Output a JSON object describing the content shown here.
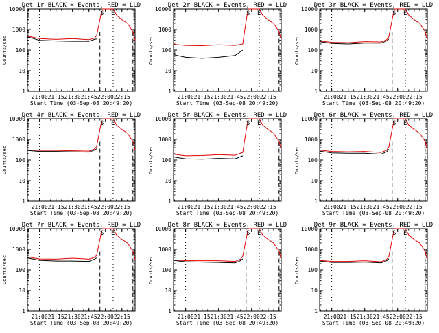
{
  "figure": {
    "start_time_label": "Start Time (03-Sep-08 20:49:20)",
    "ylabel": "Counts/sec"
  },
  "colors": {
    "events": "#000000",
    "lld": "#e00000",
    "background": "#ffffff"
  },
  "markers": {
    "top_letters": [
      "S",
      "E"
    ]
  },
  "chart_data": [
    {
      "type": "line",
      "title": "Det 1r BLACK = Events, RED = LLD",
      "xlabel": "Start Time (03-Sep-08 20:49:20)",
      "ylabel": "Counts/sec",
      "y_scale": "log",
      "ylim": [
        1,
        10000
      ],
      "x_ticks": [
        "21:00",
        "21:15",
        "21:30",
        "21:45",
        "22:00",
        "22:15"
      ],
      "x_range": [
        "20:49",
        "22:27"
      ],
      "y_ticks": [
        "1",
        "10",
        "100",
        "1000",
        "10000"
      ],
      "dotted_lines": [
        "21:00",
        "22:07"
      ],
      "dashed_lines": [
        "21:55",
        "22:25"
      ],
      "series": [
        {
          "x": [
            "20:49",
            "21:00",
            "21:15",
            "21:30",
            "21:45",
            "21:50",
            "21:52",
            "22:00",
            "22:07",
            "22:10",
            "22:15",
            "22:20",
            "22:25",
            "22:27"
          ],
          "values": [
            440,
            300,
            280,
            270,
            270,
            330,
            350,
            null,
            null,
            null,
            null,
            null,
            null,
            null
          ]
        },
        {
          "x": [
            "20:49",
            "21:00",
            "21:15",
            "21:30",
            "21:45",
            "21:50",
            "21:52",
            "21:55",
            "21:57",
            "22:07",
            "22:10",
            "22:15",
            "22:20",
            "22:25",
            "22:27"
          ],
          "values": [
            480,
            360,
            330,
            360,
            320,
            380,
            500,
            3000,
            10000,
            10000,
            5000,
            3000,
            2000,
            800,
            300
          ]
        }
      ]
    },
    {
      "type": "line",
      "title": "Det 2r BLACK = Events, RED = LLD",
      "xlabel": "Start Time (03-Sep-08 20:49:20)",
      "ylabel": "Counts/sec",
      "y_scale": "log",
      "ylim": [
        1,
        10000
      ],
      "x_ticks": [
        "21:00",
        "21:15",
        "21:30",
        "21:45",
        "22:00",
        "22:15"
      ],
      "x_range": [
        "20:49",
        "22:27"
      ],
      "y_ticks": [
        "1",
        "10",
        "100",
        "1000",
        "10000"
      ],
      "dotted_lines": [
        "22:07"
      ],
      "dashed_lines": [
        "22:25"
      ],
      "series": [
        {
          "x": [
            "20:49",
            "21:00",
            "21:15",
            "21:30",
            "21:45",
            "21:52"
          ],
          "values": [
            60,
            45,
            40,
            45,
            55,
            100
          ]
        },
        {
          "x": [
            "20:49",
            "21:00",
            "21:15",
            "21:30",
            "21:45",
            "21:52",
            "21:55",
            "21:57",
            "22:07",
            "22:10",
            "22:15",
            "22:20",
            "22:25",
            "22:27"
          ],
          "values": [
            190,
            170,
            165,
            180,
            170,
            200,
            2500,
            10000,
            10000,
            5000,
            3000,
            2000,
            800,
            300
          ]
        }
      ]
    },
    {
      "type": "line",
      "title": "Det 3r BLACK = Events, RED = LLD",
      "xlabel": "Start Time (03-Sep-08 20:49:20)",
      "ylabel": "Counts/sec",
      "y_scale": "log",
      "ylim": [
        1,
        10000
      ],
      "x_ticks": [
        "21:00",
        "21:15",
        "21:30",
        "21:45",
        "22:00",
        "22:15"
      ],
      "x_range": [
        "20:49",
        "22:27"
      ],
      "y_ticks": [
        "1",
        "10",
        "100",
        "1000",
        "10000"
      ],
      "dotted_lines": [
        "21:00",
        "22:07"
      ],
      "dashed_lines": [
        "21:55",
        "22:25"
      ],
      "series": [
        {
          "x": [
            "20:49",
            "21:00",
            "21:15",
            "21:30",
            "21:45",
            "21:50",
            "21:52"
          ],
          "values": [
            260,
            210,
            200,
            220,
            220,
            280,
            350
          ]
        },
        {
          "x": [
            "20:49",
            "21:00",
            "21:15",
            "21:30",
            "21:45",
            "21:50",
            "21:52",
            "21:55",
            "21:57",
            "22:07",
            "22:10",
            "22:15",
            "22:20",
            "22:25",
            "22:27"
          ],
          "values": [
            280,
            240,
            230,
            260,
            250,
            320,
            450,
            3000,
            10000,
            10000,
            5000,
            3000,
            2000,
            800,
            300
          ]
        }
      ]
    },
    {
      "type": "line",
      "title": "Det 4r BLACK = Events, RED = LLD",
      "xlabel": "Start Time (03-Sep-08 20:49:20)",
      "ylabel": "Counts/sec",
      "y_scale": "log",
      "ylim": [
        1,
        10000
      ],
      "x_ticks": [
        "21:00",
        "21:15",
        "21:30",
        "21:45",
        "22:00",
        "22:15"
      ],
      "x_range": [
        "20:49",
        "22:27"
      ],
      "y_ticks": [
        "1",
        "10",
        "100",
        "1000",
        "10000"
      ],
      "dotted_lines": [
        "21:00",
        "22:07"
      ],
      "dashed_lines": [
        "21:55",
        "22:25"
      ],
      "series": [
        {
          "x": [
            "20:49",
            "21:00",
            "21:15",
            "21:30",
            "21:45",
            "21:50",
            "21:52"
          ],
          "values": [
            290,
            260,
            260,
            250,
            240,
            300,
            350
          ]
        },
        {
          "x": [
            "20:49",
            "21:00",
            "21:15",
            "21:30",
            "21:45",
            "21:50",
            "21:52",
            "21:55",
            "21:57",
            "22:07",
            "22:10",
            "22:15",
            "22:20",
            "22:25",
            "22:27"
          ],
          "values": [
            310,
            290,
            290,
            280,
            270,
            340,
            450,
            3000,
            10000,
            10000,
            5000,
            3000,
            2000,
            800,
            300
          ]
        }
      ]
    },
    {
      "type": "line",
      "title": "Det 5r BLACK = Events, RED = LLD",
      "xlabel": "Start Time (03-Sep-08 20:49:20)",
      "ylabel": "Counts/sec",
      "y_scale": "log",
      "ylim": [
        1,
        10000
      ],
      "x_ticks": [
        "21:00",
        "21:15",
        "21:30",
        "21:45",
        "22:00",
        "22:15"
      ],
      "x_range": [
        "20:49",
        "22:27"
      ],
      "y_ticks": [
        "1",
        "10",
        "100",
        "1000",
        "10000"
      ],
      "dotted_lines": [
        "22:07"
      ],
      "dashed_lines": [
        "22:25"
      ],
      "series": [
        {
          "x": [
            "20:49",
            "21:00",
            "21:15",
            "21:30",
            "21:45",
            "21:52"
          ],
          "values": [
            140,
            115,
            110,
            120,
            115,
            160
          ]
        },
        {
          "x": [
            "20:49",
            "21:00",
            "21:15",
            "21:30",
            "21:45",
            "21:52",
            "21:55",
            "21:57",
            "22:07",
            "22:10",
            "22:15",
            "22:20",
            "22:25",
            "22:27"
          ],
          "values": [
            190,
            160,
            165,
            180,
            170,
            230,
            2500,
            10000,
            10000,
            5000,
            3000,
            2000,
            800,
            300
          ]
        }
      ]
    },
    {
      "type": "line",
      "title": "Det 6r BLACK = Events, RED = LLD",
      "xlabel": "Start Time (03-Sep-08 20:49:20)",
      "ylabel": "Counts/sec",
      "y_scale": "log",
      "ylim": [
        1,
        10000
      ],
      "x_ticks": [
        "21:00",
        "21:15",
        "21:30",
        "21:45",
        "22:00",
        "22:15"
      ],
      "x_range": [
        "20:49",
        "22:27"
      ],
      "y_ticks": [
        "1",
        "10",
        "100",
        "1000",
        "10000"
      ],
      "dotted_lines": [
        "21:00",
        "22:07"
      ],
      "dashed_lines": [
        "21:55",
        "22:25"
      ],
      "series": [
        {
          "x": [
            "20:49",
            "21:00",
            "21:15",
            "21:30",
            "21:45",
            "21:50",
            "21:52"
          ],
          "values": [
            270,
            220,
            210,
            210,
            190,
            250,
            330
          ]
        },
        {
          "x": [
            "20:49",
            "21:00",
            "21:15",
            "21:30",
            "21:45",
            "21:50",
            "21:52",
            "21:55",
            "21:57",
            "22:07",
            "22:10",
            "22:15",
            "22:20",
            "22:25",
            "22:27"
          ],
          "values": [
            300,
            260,
            250,
            260,
            230,
            300,
            430,
            3000,
            10000,
            10000,
            5000,
            3000,
            2000,
            800,
            300
          ]
        }
      ]
    },
    {
      "type": "line",
      "title": "Det 7r BLACK = Events, RED = LLD",
      "xlabel": "Start Time (03-Sep-08 20:49:20)",
      "ylabel": "Counts/sec",
      "y_scale": "log",
      "ylim": [
        1,
        10000
      ],
      "x_ticks": [
        "21:00",
        "21:15",
        "21:30",
        "21:45",
        "22:00",
        "22:15"
      ],
      "x_range": [
        "20:49",
        "22:27"
      ],
      "y_ticks": [
        "1",
        "10",
        "100",
        "1000",
        "10000"
      ],
      "dotted_lines": [
        "21:00",
        "22:07"
      ],
      "dashed_lines": [
        "21:55",
        "22:25"
      ],
      "series": [
        {
          "x": [
            "20:49",
            "21:00",
            "21:15",
            "21:30",
            "21:45",
            "21:50",
            "21:52"
          ],
          "values": [
            380,
            290,
            270,
            270,
            260,
            330,
            380
          ]
        },
        {
          "x": [
            "20:49",
            "21:00",
            "21:15",
            "21:30",
            "21:45",
            "21:50",
            "21:52",
            "21:55",
            "21:57",
            "22:07",
            "22:10",
            "22:15",
            "22:20",
            "22:25",
            "22:27"
          ],
          "values": [
            420,
            340,
            330,
            370,
            330,
            400,
            500,
            3000,
            10000,
            10000,
            5000,
            3000,
            2000,
            800,
            300
          ]
        }
      ]
    },
    {
      "type": "line",
      "title": "Det 8r BLACK = Events, RED = LLD",
      "xlabel": "Start Time (03-Sep-08 20:49:20)",
      "ylabel": "Counts/sec",
      "y_scale": "log",
      "ylim": [
        1,
        10000
      ],
      "x_ticks": [
        "21:00",
        "21:15",
        "21:30",
        "21:45",
        "22:00",
        "22:15"
      ],
      "x_range": [
        "20:49",
        "22:27"
      ],
      "y_ticks": [
        "1",
        "10",
        "100",
        "1000",
        "10000"
      ],
      "dotted_lines": [
        "21:00",
        "22:07"
      ],
      "dashed_lines": [
        "21:55",
        "22:25"
      ],
      "series": [
        {
          "x": [
            "20:49",
            "21:00",
            "21:15",
            "21:30",
            "21:45",
            "21:50",
            "21:52"
          ],
          "values": [
            290,
            250,
            240,
            230,
            220,
            280,
            350
          ]
        },
        {
          "x": [
            "20:49",
            "21:00",
            "21:15",
            "21:30",
            "21:45",
            "21:50",
            "21:52",
            "21:55",
            "21:57",
            "22:07",
            "22:10",
            "22:15",
            "22:20",
            "22:25",
            "22:27"
          ],
          "values": [
            310,
            280,
            280,
            280,
            260,
            330,
            460,
            3000,
            10000,
            10000,
            5000,
            3000,
            2000,
            800,
            300
          ]
        }
      ]
    },
    {
      "type": "line",
      "title": "Det 9r BLACK = Events, RED = LLD",
      "xlabel": "Start Time (03-Sep-08 20:49:20)",
      "ylabel": "Counts/sec",
      "y_scale": "log",
      "ylim": [
        1,
        10000
      ],
      "x_ticks": [
        "21:00",
        "21:15",
        "21:30",
        "21:45",
        "22:00",
        "22:15"
      ],
      "x_range": [
        "20:49",
        "22:27"
      ],
      "y_ticks": [
        "1",
        "10",
        "100",
        "1000",
        "10000"
      ],
      "dotted_lines": [
        "21:00",
        "22:07"
      ],
      "dashed_lines": [
        "21:55",
        "22:25"
      ],
      "series": [
        {
          "x": [
            "20:49",
            "21:00",
            "21:15",
            "21:30",
            "21:45",
            "21:50",
            "21:52"
          ],
          "values": [
            270,
            230,
            230,
            240,
            220,
            280,
            350
          ]
        },
        {
          "x": [
            "20:49",
            "21:00",
            "21:15",
            "21:30",
            "21:45",
            "21:50",
            "21:52",
            "21:55",
            "21:57",
            "22:07",
            "22:10",
            "22:15",
            "22:20",
            "22:25",
            "22:27"
          ],
          "values": [
            290,
            260,
            260,
            280,
            250,
            320,
            450,
            3000,
            10000,
            10000,
            5000,
            3000,
            2000,
            800,
            300
          ]
        }
      ]
    }
  ]
}
